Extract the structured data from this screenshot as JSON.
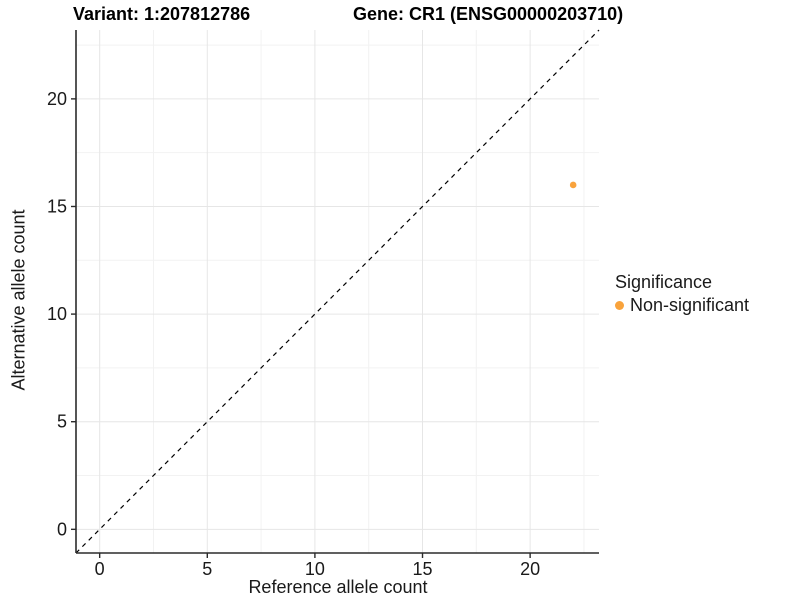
{
  "titles": {
    "variant": "Variant: 1:207812786",
    "gene": "Gene: CR1 (ENSG00000203710)"
  },
  "legend": {
    "title": "Significance",
    "items": [
      {
        "label": "Non-significant",
        "color": "#F9A33C"
      }
    ]
  },
  "colors": {
    "grid_major": "#E6E6E6",
    "grid_minor": "#F2F2F2",
    "axis_line": "#2b2b2b",
    "tick_label": "#1a1a1a",
    "reference_line": "#000000"
  },
  "chart_data": {
    "type": "scatter",
    "title": "Variant: 1:207812786 | Gene: CR1 (ENSG00000203710)",
    "xlabel": "Reference allele count",
    "ylabel": "Alternative allele count",
    "xlim": [
      -1.1,
      23.2
    ],
    "ylim": [
      -1.1,
      23.2
    ],
    "xticks": [
      0,
      5,
      10,
      15,
      20
    ],
    "yticks": [
      0,
      5,
      10,
      15,
      20
    ],
    "x_minor_ticks": [
      2.5,
      7.5,
      12.5,
      17.5,
      22.5
    ],
    "y_minor_ticks": [
      2.5,
      7.5,
      12.5,
      17.5,
      22.5
    ],
    "grid": true,
    "legend_position": "right",
    "reference_line": {
      "type": "identity",
      "equation": "y = x",
      "style": "dashed",
      "color": "#000000"
    },
    "series": [
      {
        "name": "Non-significant",
        "color": "#F9A33C",
        "points": [
          {
            "x": 22,
            "y": 16
          }
        ]
      }
    ]
  }
}
